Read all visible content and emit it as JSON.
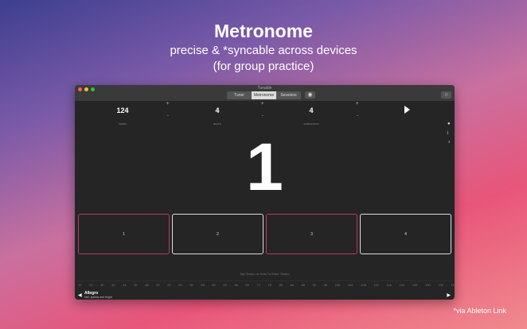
{
  "hero": {
    "title": "Metronome",
    "line1": "precise & *syncable across devices",
    "line2": "(for group practice)"
  },
  "window": {
    "title": "Tunable",
    "tabs": [
      {
        "label": "Tuner"
      },
      {
        "label": "Metronome",
        "active": true
      },
      {
        "label": "Sessions"
      }
    ],
    "traffic_colors": [
      "#fe5f57",
      "#febc2e",
      "#28c840"
    ]
  },
  "controls": [
    {
      "value": "124",
      "label": "TEMPO"
    },
    {
      "value": "4",
      "label": "BEATS"
    },
    {
      "value": "4",
      "label": "SUBDIVISION"
    }
  ],
  "plus": "+",
  "minus": "-",
  "current_beat": "1",
  "beats": [
    "1",
    "2",
    "3",
    "4"
  ],
  "tap_hint": "Tap Tempo or Hold To Enter Tempo",
  "tempo_scale": [
    "10",
    "20",
    "40",
    "42",
    "44",
    "46",
    "48",
    "50",
    "52",
    "54",
    "56",
    "58",
    "60",
    "63",
    "66",
    "69",
    "72",
    "76",
    "80",
    "84",
    "88",
    "92",
    "96",
    "100",
    "104",
    "108",
    "112",
    "116",
    "120",
    "126",
    "130",
    "132",
    "13"
  ],
  "marking": {
    "name": "Allegro",
    "description": "fast, quickly and bright"
  },
  "footnote": "*via Ableton Link"
}
